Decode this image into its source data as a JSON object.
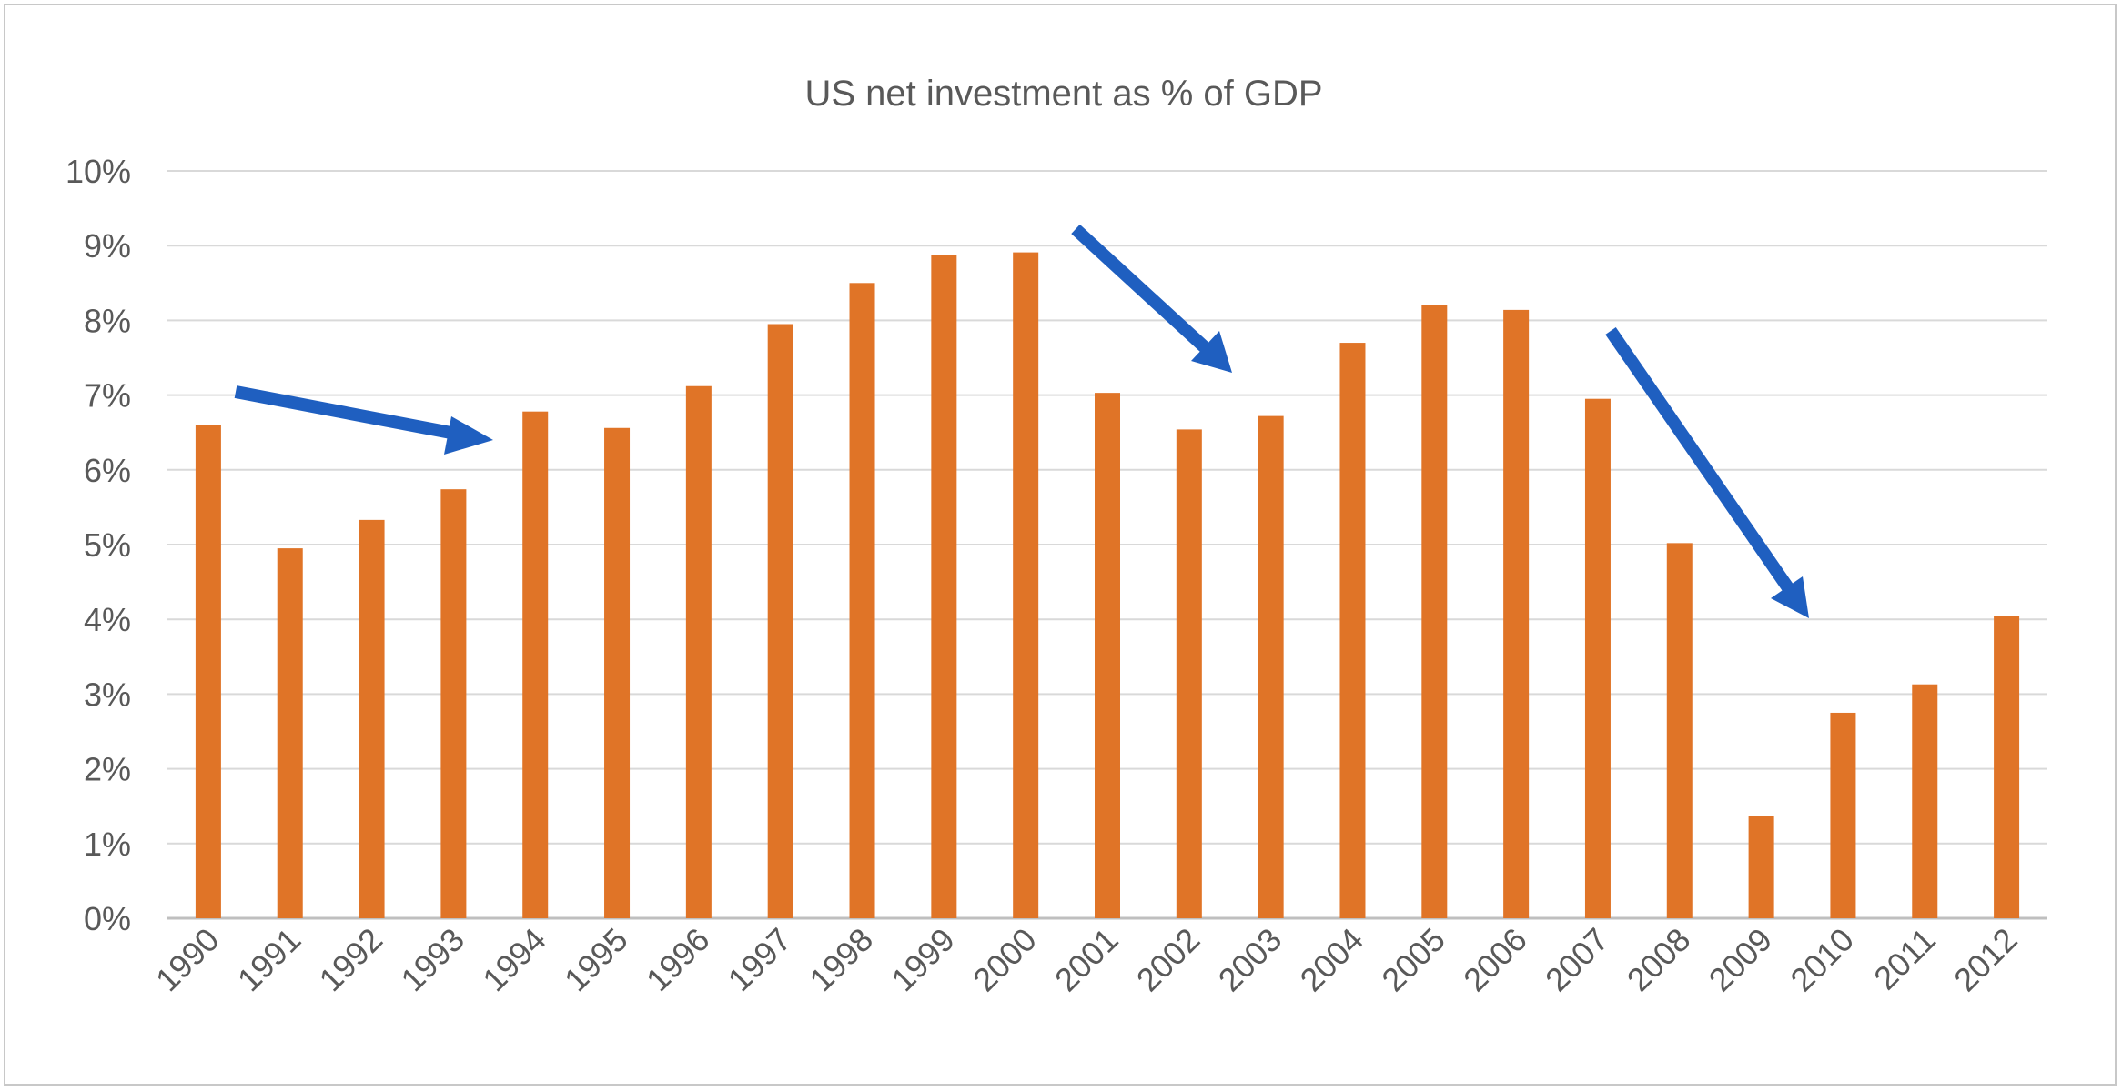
{
  "chart_data": {
    "type": "bar",
    "title": "US net investment as % of GDP",
    "xlabel": "",
    "ylabel": "",
    "categories": [
      "1990",
      "1991",
      "1992",
      "1993",
      "1994",
      "1995",
      "1996",
      "1997",
      "1998",
      "1999",
      "2000",
      "2001",
      "2002",
      "2003",
      "2004",
      "2005",
      "2006",
      "2007",
      "2008",
      "2009",
      "2010",
      "2011",
      "2012"
    ],
    "values": [
      6.6,
      4.95,
      5.33,
      5.74,
      6.78,
      6.56,
      7.12,
      7.95,
      8.5,
      8.87,
      8.91,
      7.03,
      6.54,
      6.72,
      7.7,
      8.21,
      8.14,
      6.95,
      5.02,
      1.37,
      2.75,
      3.13,
      4.04
    ],
    "ylim": [
      0,
      10
    ],
    "yticks": [
      "0%",
      "1%",
      "2%",
      "3%",
      "4%",
      "5%",
      "6%",
      "7%",
      "8%",
      "9%",
      "10%"
    ],
    "grid": true,
    "colors": {
      "bar": "#E07427",
      "arrow": "#1F5FC0",
      "grid": "#D9D9D9",
      "text": "#595959"
    }
  }
}
